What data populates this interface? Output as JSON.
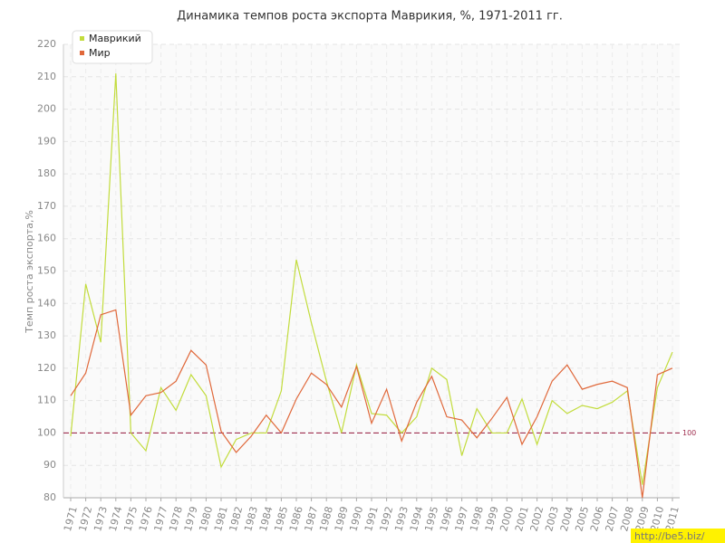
{
  "chart_data": {
    "type": "line",
    "title": "Динамика темпов роста экспорта Маврикия, %, 1971-2011 гг.",
    "y_label": "Темп роста экспорта,%",
    "categories": [
      "1971",
      "1972",
      "1973",
      "1974",
      "1975",
      "1976",
      "1977",
      "1978",
      "1979",
      "1980",
      "1981",
      "1982",
      "1983",
      "1984",
      "1985",
      "1986",
      "1987",
      "1988",
      "1989",
      "1990",
      "1991",
      "1992",
      "1993",
      "1994",
      "1995",
      "1996",
      "1997",
      "1998",
      "1999",
      "2000",
      "2001",
      "2002",
      "2003",
      "2004",
      "2005",
      "2006",
      "2007",
      "2008",
      "2009",
      "2010",
      "2011"
    ],
    "series": [
      {
        "name": "Маврикий",
        "color": "#c2dc3c",
        "values": [
          99,
          146,
          128,
          211,
          100,
          94.5,
          114,
          107,
          118,
          111.5,
          89.5,
          98,
          100,
          100,
          113,
          153.5,
          134,
          116,
          100,
          121,
          106,
          105.5,
          100,
          105,
          120,
          116.5,
          93,
          107.5,
          100,
          100,
          110.5,
          96.5,
          110,
          106,
          108.5,
          107.5,
          109.5,
          113,
          84,
          114,
          125
        ]
      },
      {
        "name": "Мир",
        "color": "#e0683a",
        "values": [
          111.5,
          118.5,
          136.5,
          138,
          105.5,
          111.5,
          112.5,
          116,
          125.5,
          121,
          100.5,
          94,
          99,
          105.5,
          100,
          110.5,
          118.5,
          115,
          108,
          120.5,
          103,
          113.5,
          97.5,
          109.5,
          117.5,
          105,
          104,
          98.5,
          104.5,
          111,
          96.5,
          105,
          116,
          121,
          113.5,
          115,
          116,
          114,
          80,
          118,
          120
        ]
      }
    ],
    "ylim": [
      80,
      220
    ],
    "yticks": [
      80,
      90,
      100,
      110,
      120,
      130,
      140,
      150,
      160,
      170,
      180,
      190,
      200,
      210,
      220
    ],
    "grid": true,
    "legend": "upper left",
    "reference_line": 100,
    "reference_color": "#a03050",
    "watermark": "http://be5.biz/"
  }
}
